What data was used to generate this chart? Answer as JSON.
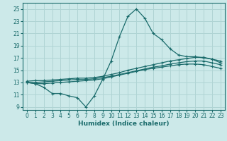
{
  "xlabel": "Humidex (Indice chaleur)",
  "xlim": [
    -0.5,
    23.5
  ],
  "ylim": [
    8.5,
    26.0
  ],
  "xticks": [
    0,
    1,
    2,
    3,
    4,
    5,
    6,
    7,
    8,
    9,
    10,
    11,
    12,
    13,
    14,
    15,
    16,
    17,
    18,
    19,
    20,
    21,
    22,
    23
  ],
  "yticks": [
    9,
    11,
    13,
    15,
    17,
    19,
    21,
    23,
    25
  ],
  "bg_color": "#cce9e9",
  "grid_color": "#b0d4d4",
  "line_color": "#1a6b6b",
  "line1_x": [
    0,
    1,
    2,
    3,
    4,
    5,
    6,
    7,
    8,
    9,
    10,
    11,
    12,
    13,
    14,
    15,
    16,
    17,
    18,
    19,
    20,
    21,
    22,
    23
  ],
  "line1_y": [
    13.0,
    12.8,
    12.2,
    11.2,
    11.2,
    10.8,
    10.5,
    9.0,
    10.8,
    13.5,
    16.5,
    20.5,
    23.8,
    25.0,
    23.5,
    21.0,
    20.0,
    18.5,
    17.5,
    17.2,
    17.2,
    17.0,
    16.8,
    16.2
  ],
  "line2_x": [
    0,
    1,
    2,
    3,
    4,
    5,
    6,
    7,
    8,
    9,
    10,
    11,
    12,
    13,
    14,
    15,
    16,
    17,
    18,
    19,
    20,
    21,
    22,
    23
  ],
  "line2_y": [
    13.2,
    13.3,
    13.3,
    13.4,
    13.5,
    13.6,
    13.7,
    13.7,
    13.8,
    14.0,
    14.3,
    14.6,
    15.0,
    15.3,
    15.6,
    15.9,
    16.2,
    16.5,
    16.7,
    16.9,
    17.1,
    17.1,
    16.8,
    16.5
  ],
  "line3_x": [
    0,
    1,
    2,
    3,
    4,
    5,
    6,
    7,
    8,
    9,
    10,
    11,
    12,
    13,
    14,
    15,
    16,
    17,
    18,
    19,
    20,
    21,
    22,
    23
  ],
  "line3_y": [
    13.0,
    13.0,
    13.1,
    13.2,
    13.3,
    13.4,
    13.5,
    13.5,
    13.6,
    13.8,
    14.0,
    14.3,
    14.6,
    14.9,
    15.2,
    15.5,
    15.7,
    16.0,
    16.2,
    16.4,
    16.5,
    16.5,
    16.2,
    15.9
  ],
  "line4_x": [
    0,
    1,
    2,
    3,
    4,
    5,
    6,
    7,
    8,
    9,
    10,
    11,
    12,
    13,
    14,
    15,
    16,
    17,
    18,
    19,
    20,
    21,
    22,
    23
  ],
  "line4_y": [
    13.0,
    12.8,
    12.8,
    12.9,
    13.0,
    13.1,
    13.2,
    13.3,
    13.4,
    13.6,
    13.9,
    14.2,
    14.5,
    14.8,
    15.1,
    15.3,
    15.5,
    15.7,
    15.9,
    16.0,
    16.0,
    15.9,
    15.6,
    15.3
  ]
}
